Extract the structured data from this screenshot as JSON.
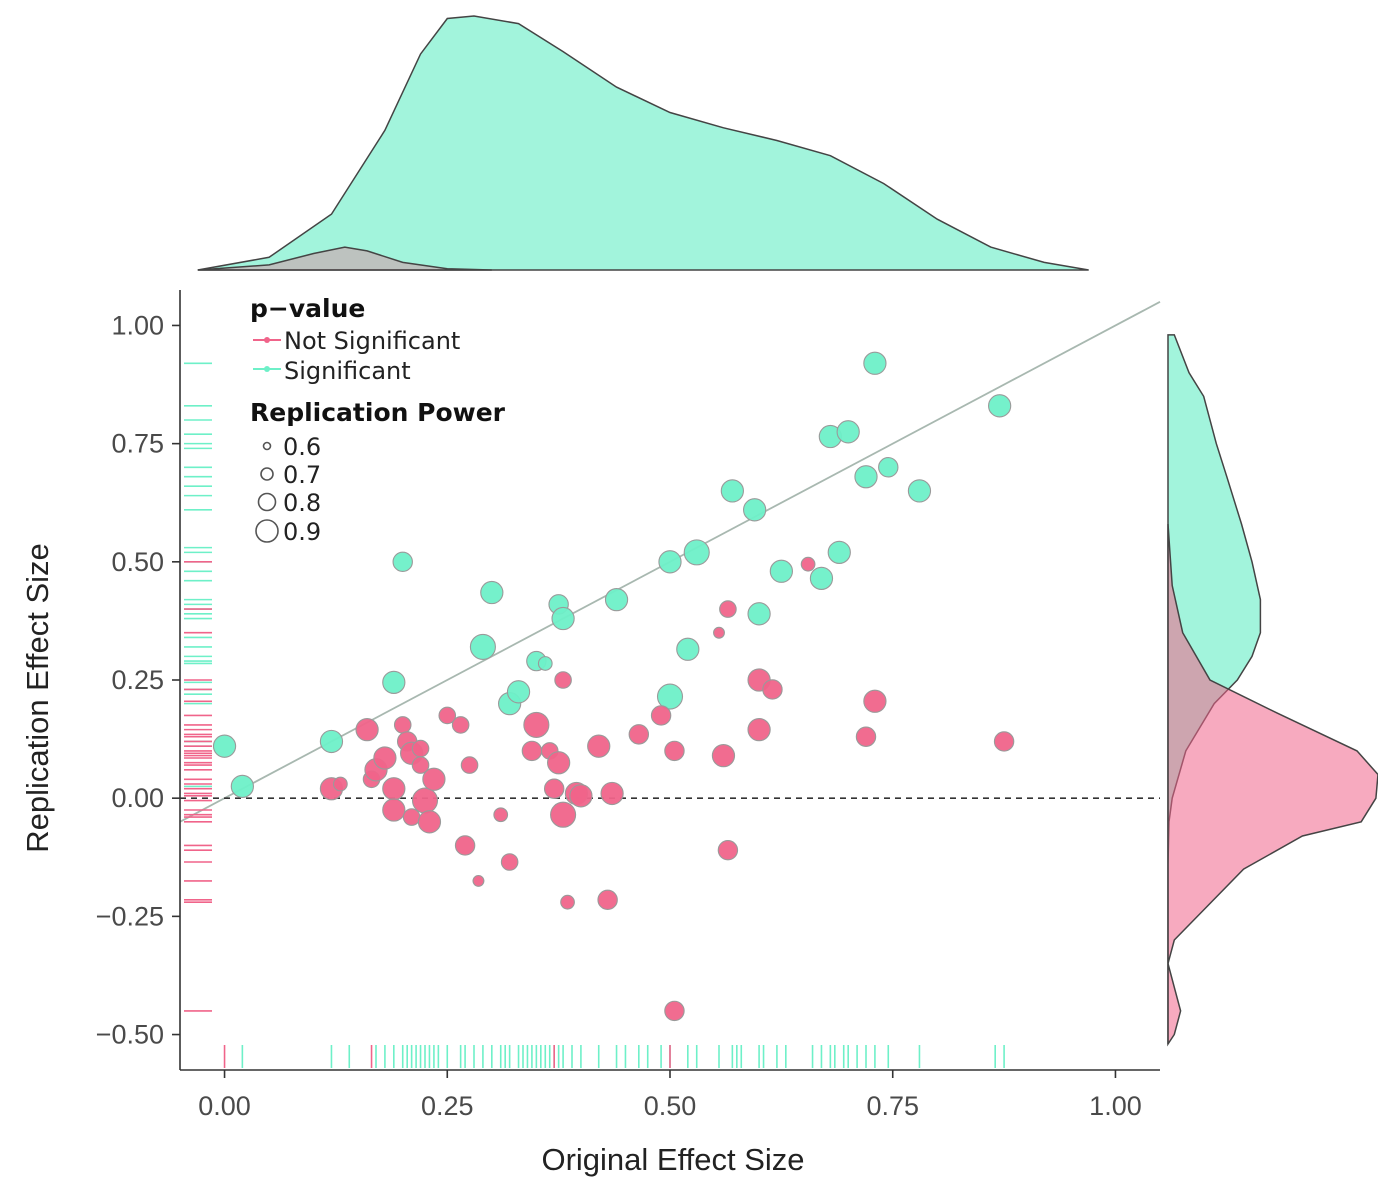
{
  "chart_data": {
    "type": "scatter",
    "title": "",
    "xlabel": "Original Effect Size",
    "ylabel": "Replication Effect Size",
    "xlim": [
      -0.05,
      1.05
    ],
    "ylim": [
      -0.575,
      1.075
    ],
    "x_ticks": [
      0.0,
      0.25,
      0.5,
      0.75,
      1.0
    ],
    "x_tick_labels": [
      "0.00",
      "0.25",
      "0.50",
      "0.75",
      "1.00"
    ],
    "y_ticks": [
      -0.5,
      -0.25,
      0.0,
      0.25,
      0.5,
      0.75,
      1.0
    ],
    "y_tick_labels": [
      "−0.50",
      "−0.25",
      "0.00",
      "0.25",
      "0.50",
      "0.75",
      "1.00"
    ],
    "grid": false,
    "reference_lines": {
      "diagonal": "y = x",
      "horizontal": 0
    },
    "colors": {
      "not_significant": "#f0648a",
      "significant": "#6ef0c8",
      "point_stroke": "#9a9a9a"
    },
    "legend": {
      "placement": "top-left",
      "color_title": "p−value",
      "color_entries": [
        {
          "label": "Not Significant",
          "color": "#f0648a"
        },
        {
          "label": "Significant",
          "color": "#6ef0c8"
        }
      ],
      "size_title": "Replication Power",
      "size_entries": [
        {
          "label": "0.6",
          "value": 0.6
        },
        {
          "label": "0.7",
          "value": 0.7
        },
        {
          "label": "0.8",
          "value": 0.8
        },
        {
          "label": "0.9",
          "value": 0.9
        }
      ]
    },
    "series": [
      {
        "name": "Significant",
        "color": "#6ef0c8",
        "points": [
          {
            "x": 0.0,
            "y": 0.11,
            "power": 0.85
          },
          {
            "x": 0.02,
            "y": 0.025,
            "power": 0.85
          },
          {
            "x": 0.12,
            "y": 0.12,
            "power": 0.85
          },
          {
            "x": 0.19,
            "y": 0.245,
            "power": 0.85
          },
          {
            "x": 0.2,
            "y": 0.5,
            "power": 0.8
          },
          {
            "x": 0.29,
            "y": 0.32,
            "power": 0.9
          },
          {
            "x": 0.3,
            "y": 0.435,
            "power": 0.85
          },
          {
            "x": 0.32,
            "y": 0.2,
            "power": 0.85
          },
          {
            "x": 0.33,
            "y": 0.225,
            "power": 0.85
          },
          {
            "x": 0.35,
            "y": 0.29,
            "power": 0.8
          },
          {
            "x": 0.36,
            "y": 0.285,
            "power": 0.7
          },
          {
            "x": 0.375,
            "y": 0.41,
            "power": 0.8
          },
          {
            "x": 0.38,
            "y": 0.38,
            "power": 0.85
          },
          {
            "x": 0.44,
            "y": 0.42,
            "power": 0.85
          },
          {
            "x": 0.5,
            "y": 0.5,
            "power": 0.85
          },
          {
            "x": 0.5,
            "y": 0.215,
            "power": 0.9
          },
          {
            "x": 0.52,
            "y": 0.315,
            "power": 0.85
          },
          {
            "x": 0.53,
            "y": 0.52,
            "power": 0.9
          },
          {
            "x": 0.57,
            "y": 0.65,
            "power": 0.85
          },
          {
            "x": 0.595,
            "y": 0.61,
            "power": 0.85
          },
          {
            "x": 0.6,
            "y": 0.39,
            "power": 0.85
          },
          {
            "x": 0.625,
            "y": 0.48,
            "power": 0.85
          },
          {
            "x": 0.67,
            "y": 0.465,
            "power": 0.85
          },
          {
            "x": 0.68,
            "y": 0.765,
            "power": 0.85
          },
          {
            "x": 0.69,
            "y": 0.52,
            "power": 0.85
          },
          {
            "x": 0.7,
            "y": 0.775,
            "power": 0.85
          },
          {
            "x": 0.72,
            "y": 0.68,
            "power": 0.85
          },
          {
            "x": 0.73,
            "y": 0.92,
            "power": 0.85
          },
          {
            "x": 0.745,
            "y": 0.7,
            "power": 0.8
          },
          {
            "x": 0.78,
            "y": 0.65,
            "power": 0.85
          },
          {
            "x": 0.87,
            "y": 0.83,
            "power": 0.85
          }
        ]
      },
      {
        "name": "Not Significant",
        "color": "#f0648a",
        "points": [
          {
            "x": 0.12,
            "y": 0.02,
            "power": 0.85
          },
          {
            "x": 0.13,
            "y": 0.03,
            "power": 0.7
          },
          {
            "x": 0.16,
            "y": 0.145,
            "power": 0.85
          },
          {
            "x": 0.165,
            "y": 0.04,
            "power": 0.75
          },
          {
            "x": 0.17,
            "y": 0.06,
            "power": 0.85
          },
          {
            "x": 0.18,
            "y": 0.085,
            "power": 0.85
          },
          {
            "x": 0.19,
            "y": 0.02,
            "power": 0.85
          },
          {
            "x": 0.19,
            "y": -0.025,
            "power": 0.85
          },
          {
            "x": 0.2,
            "y": 0.155,
            "power": 0.75
          },
          {
            "x": 0.205,
            "y": 0.12,
            "power": 0.8
          },
          {
            "x": 0.21,
            "y": 0.095,
            "power": 0.85
          },
          {
            "x": 0.21,
            "y": -0.04,
            "power": 0.75
          },
          {
            "x": 0.22,
            "y": 0.105,
            "power": 0.75
          },
          {
            "x": 0.22,
            "y": 0.07,
            "power": 0.75
          },
          {
            "x": 0.225,
            "y": -0.005,
            "power": 0.9
          },
          {
            "x": 0.23,
            "y": -0.05,
            "power": 0.85
          },
          {
            "x": 0.235,
            "y": 0.04,
            "power": 0.85
          },
          {
            "x": 0.25,
            "y": 0.175,
            "power": 0.75
          },
          {
            "x": 0.265,
            "y": 0.155,
            "power": 0.75
          },
          {
            "x": 0.275,
            "y": 0.07,
            "power": 0.75
          },
          {
            "x": 0.27,
            "y": -0.1,
            "power": 0.8
          },
          {
            "x": 0.285,
            "y": -0.175,
            "power": 0.65
          },
          {
            "x": 0.31,
            "y": -0.035,
            "power": 0.7
          },
          {
            "x": 0.32,
            "y": -0.135,
            "power": 0.75
          },
          {
            "x": 0.345,
            "y": 0.1,
            "power": 0.8
          },
          {
            "x": 0.35,
            "y": 0.155,
            "power": 0.9
          },
          {
            "x": 0.365,
            "y": 0.1,
            "power": 0.75
          },
          {
            "x": 0.37,
            "y": 0.02,
            "power": 0.8
          },
          {
            "x": 0.375,
            "y": 0.075,
            "power": 0.85
          },
          {
            "x": 0.38,
            "y": -0.035,
            "power": 0.9
          },
          {
            "x": 0.38,
            "y": 0.25,
            "power": 0.75
          },
          {
            "x": 0.385,
            "y": -0.22,
            "power": 0.7
          },
          {
            "x": 0.395,
            "y": 0.01,
            "power": 0.85
          },
          {
            "x": 0.4,
            "y": 0.005,
            "power": 0.85
          },
          {
            "x": 0.42,
            "y": 0.11,
            "power": 0.85
          },
          {
            "x": 0.43,
            "y": -0.215,
            "power": 0.8
          },
          {
            "x": 0.435,
            "y": 0.01,
            "power": 0.85
          },
          {
            "x": 0.465,
            "y": 0.135,
            "power": 0.8
          },
          {
            "x": 0.49,
            "y": 0.175,
            "power": 0.8
          },
          {
            "x": 0.505,
            "y": 0.1,
            "power": 0.8
          },
          {
            "x": 0.505,
            "y": -0.45,
            "power": 0.8
          },
          {
            "x": 0.555,
            "y": 0.35,
            "power": 0.65
          },
          {
            "x": 0.56,
            "y": 0.09,
            "power": 0.85
          },
          {
            "x": 0.565,
            "y": 0.4,
            "power": 0.75
          },
          {
            "x": 0.565,
            "y": -0.11,
            "power": 0.8
          },
          {
            "x": 0.6,
            "y": 0.145,
            "power": 0.85
          },
          {
            "x": 0.6,
            "y": 0.25,
            "power": 0.85
          },
          {
            "x": 0.615,
            "y": 0.23,
            "power": 0.8
          },
          {
            "x": 0.655,
            "y": 0.495,
            "power": 0.7
          },
          {
            "x": 0.72,
            "y": 0.13,
            "power": 0.8
          },
          {
            "x": 0.73,
            "y": 0.205,
            "power": 0.85
          },
          {
            "x": 0.875,
            "y": 0.12,
            "power": 0.8
          }
        ]
      }
    ],
    "rug_x": {
      "significant": [
        0.02,
        0.12,
        0.14,
        0.17,
        0.18,
        0.19,
        0.2,
        0.205,
        0.21,
        0.215,
        0.22,
        0.225,
        0.23,
        0.235,
        0.24,
        0.25,
        0.265,
        0.27,
        0.28,
        0.29,
        0.3,
        0.31,
        0.315,
        0.32,
        0.33,
        0.335,
        0.34,
        0.345,
        0.35,
        0.355,
        0.36,
        0.365,
        0.37,
        0.375,
        0.38,
        0.39,
        0.4,
        0.42,
        0.44,
        0.45,
        0.465,
        0.475,
        0.49,
        0.5,
        0.52,
        0.53,
        0.555,
        0.57,
        0.575,
        0.58,
        0.6,
        0.605,
        0.62,
        0.63,
        0.66,
        0.67,
        0.68,
        0.685,
        0.695,
        0.7,
        0.71,
        0.72,
        0.73,
        0.745,
        0.78,
        0.865,
        0.875
      ],
      "not_significant": [
        0.0,
        0.165,
        0.37,
        0.5
      ]
    },
    "rug_y": {
      "significant": [
        0.92,
        0.83,
        0.8,
        0.77,
        0.75,
        0.74,
        0.7,
        0.68,
        0.66,
        0.64,
        0.61,
        0.53,
        0.52,
        0.5,
        0.48,
        0.46,
        0.42,
        0.41,
        0.4,
        0.39,
        0.38,
        0.34,
        0.32,
        0.3,
        0.29,
        0.285,
        0.245,
        0.23,
        0.22,
        0.2,
        0.12,
        0.11,
        0.025
      ],
      "not_significant": [
        0.5,
        0.4,
        0.35,
        0.25,
        0.23,
        0.205,
        0.175,
        0.155,
        0.145,
        0.135,
        0.13,
        0.12,
        0.11,
        0.1,
        0.095,
        0.09,
        0.085,
        0.075,
        0.07,
        0.06,
        0.04,
        0.03,
        0.02,
        0.01,
        0.005,
        -0.005,
        -0.025,
        -0.035,
        -0.04,
        -0.05,
        -0.1,
        -0.11,
        -0.135,
        -0.175,
        -0.215,
        -0.22,
        -0.45
      ]
    },
    "density_x": {
      "significant": [
        [
          -0.03,
          0.0
        ],
        [
          0.05,
          0.05
        ],
        [
          0.12,
          0.22
        ],
        [
          0.18,
          0.55
        ],
        [
          0.22,
          0.85
        ],
        [
          0.25,
          0.99
        ],
        [
          0.28,
          1.0
        ],
        [
          0.33,
          0.97
        ],
        [
          0.38,
          0.86
        ],
        [
          0.44,
          0.72
        ],
        [
          0.5,
          0.62
        ],
        [
          0.56,
          0.56
        ],
        [
          0.62,
          0.51
        ],
        [
          0.68,
          0.45
        ],
        [
          0.74,
          0.34
        ],
        [
          0.8,
          0.2
        ],
        [
          0.86,
          0.09
        ],
        [
          0.92,
          0.03
        ],
        [
          0.97,
          0.0
        ]
      ],
      "not_significant": [
        [
          -0.03,
          0.0
        ],
        [
          0.05,
          0.02
        ],
        [
          0.1,
          0.065
        ],
        [
          0.135,
          0.09
        ],
        [
          0.16,
          0.075
        ],
        [
          0.2,
          0.03
        ],
        [
          0.25,
          0.005
        ],
        [
          0.3,
          0.0
        ]
      ]
    },
    "density_y": {
      "significant": [
        [
          -0.52,
          0.0
        ],
        [
          -0.3,
          0.0
        ],
        [
          -0.14,
          0.0
        ],
        [
          -0.05,
          0.005
        ],
        [
          0.0,
          0.02
        ],
        [
          0.1,
          0.085
        ],
        [
          0.2,
          0.22
        ],
        [
          0.25,
          0.33
        ],
        [
          0.3,
          0.4
        ],
        [
          0.35,
          0.44
        ],
        [
          0.42,
          0.44
        ],
        [
          0.5,
          0.4
        ],
        [
          0.58,
          0.35
        ],
        [
          0.68,
          0.28
        ],
        [
          0.75,
          0.23
        ],
        [
          0.85,
          0.17
        ],
        [
          0.9,
          0.1
        ],
        [
          0.98,
          0.03
        ],
        [
          0.98,
          0.0
        ]
      ],
      "not_significant": [
        [
          -0.52,
          0.0
        ],
        [
          -0.5,
          0.03
        ],
        [
          -0.45,
          0.06
        ],
        [
          -0.4,
          0.03
        ],
        [
          -0.35,
          0.0
        ],
        [
          -0.3,
          0.03
        ],
        [
          -0.25,
          0.14
        ],
        [
          -0.15,
          0.36
        ],
        [
          -0.08,
          0.64
        ],
        [
          -0.05,
          0.92
        ],
        [
          0.0,
          0.99
        ],
        [
          0.05,
          1.0
        ],
        [
          0.1,
          0.9
        ],
        [
          0.18,
          0.52
        ],
        [
          0.25,
          0.2
        ],
        [
          0.35,
          0.07
        ],
        [
          0.45,
          0.02
        ],
        [
          0.58,
          0.0
        ]
      ]
    }
  }
}
